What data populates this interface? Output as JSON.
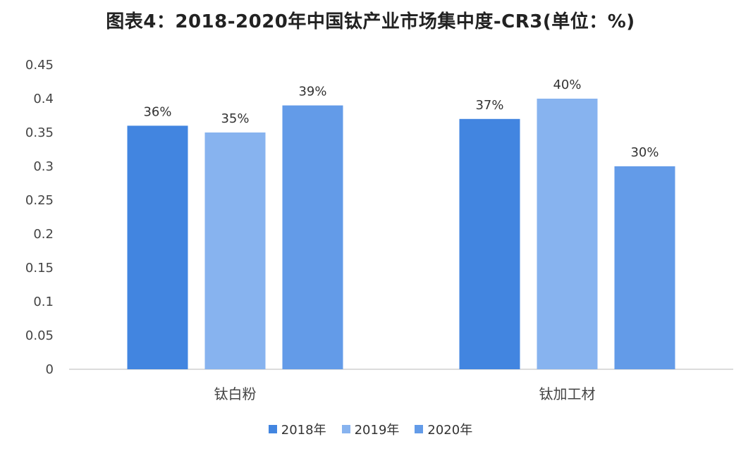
{
  "chart_data": {
    "type": "bar",
    "title": "图表4：2018-2020年中国钛产业市场集中度-CR3(单位：%)",
    "categories": [
      "钛白粉",
      "钛加工材"
    ],
    "series": [
      {
        "name": "2018年",
        "values": [
          0.36,
          0.37
        ],
        "labels": [
          "36%",
          "37%"
        ],
        "color": "#4285e0"
      },
      {
        "name": "2019年",
        "values": [
          0.35,
          0.4
        ],
        "labels": [
          "35%",
          "40%"
        ],
        "color": "#87b3ef"
      },
      {
        "name": "2020年",
        "values": [
          0.39,
          0.3
        ],
        "labels": [
          "39%",
          "30%"
        ],
        "color": "#639be8"
      }
    ],
    "ylim": [
      0,
      0.45
    ],
    "yticks": [
      "0",
      "0.05",
      "0.1",
      "0.15",
      "0.2",
      "0.25",
      "0.3",
      "0.35",
      "0.4",
      "0.45"
    ],
    "xlabel": "",
    "ylabel": "",
    "grid": false,
    "legend_position": "bottom"
  }
}
